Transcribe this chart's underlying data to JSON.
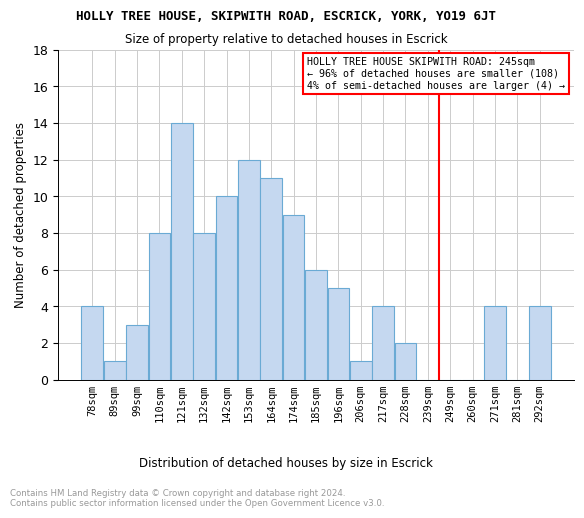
{
  "title": "HOLLY TREE HOUSE, SKIPWITH ROAD, ESCRICK, YORK, YO19 6JT",
  "subtitle": "Size of property relative to detached houses in Escrick",
  "xlabel": "Distribution of detached houses by size in Escrick",
  "ylabel": "Number of detached properties",
  "categories": [
    "78sqm",
    "89sqm",
    "99sqm",
    "110sqm",
    "121sqm",
    "132sqm",
    "142sqm",
    "153sqm",
    "164sqm",
    "174sqm",
    "185sqm",
    "196sqm",
    "206sqm",
    "217sqm",
    "228sqm",
    "239sqm",
    "249sqm",
    "260sqm",
    "271sqm",
    "281sqm",
    "292sqm"
  ],
  "values": [
    4,
    1,
    3,
    8,
    14,
    8,
    10,
    12,
    11,
    9,
    6,
    5,
    1,
    4,
    2,
    0,
    0,
    0,
    4,
    0,
    4
  ],
  "bar_color": "#c5d8f0",
  "bar_edgecolor": "#6aaad4",
  "vline_color": "red",
  "vline_index": 16,
  "annotation_text": "HOLLY TREE HOUSE SKIPWITH ROAD: 245sqm\n← 96% of detached houses are smaller (108)\n4% of semi-detached houses are larger (4) →",
  "ylim": [
    0,
    18
  ],
  "yticks": [
    0,
    2,
    4,
    6,
    8,
    10,
    12,
    14,
    16,
    18
  ],
  "footer": "Contains HM Land Registry data © Crown copyright and database right 2024.\nContains public sector information licensed under the Open Government Licence v3.0.",
  "footer_color": "#999999",
  "grid_color": "#cccccc",
  "background_color": "#ffffff"
}
